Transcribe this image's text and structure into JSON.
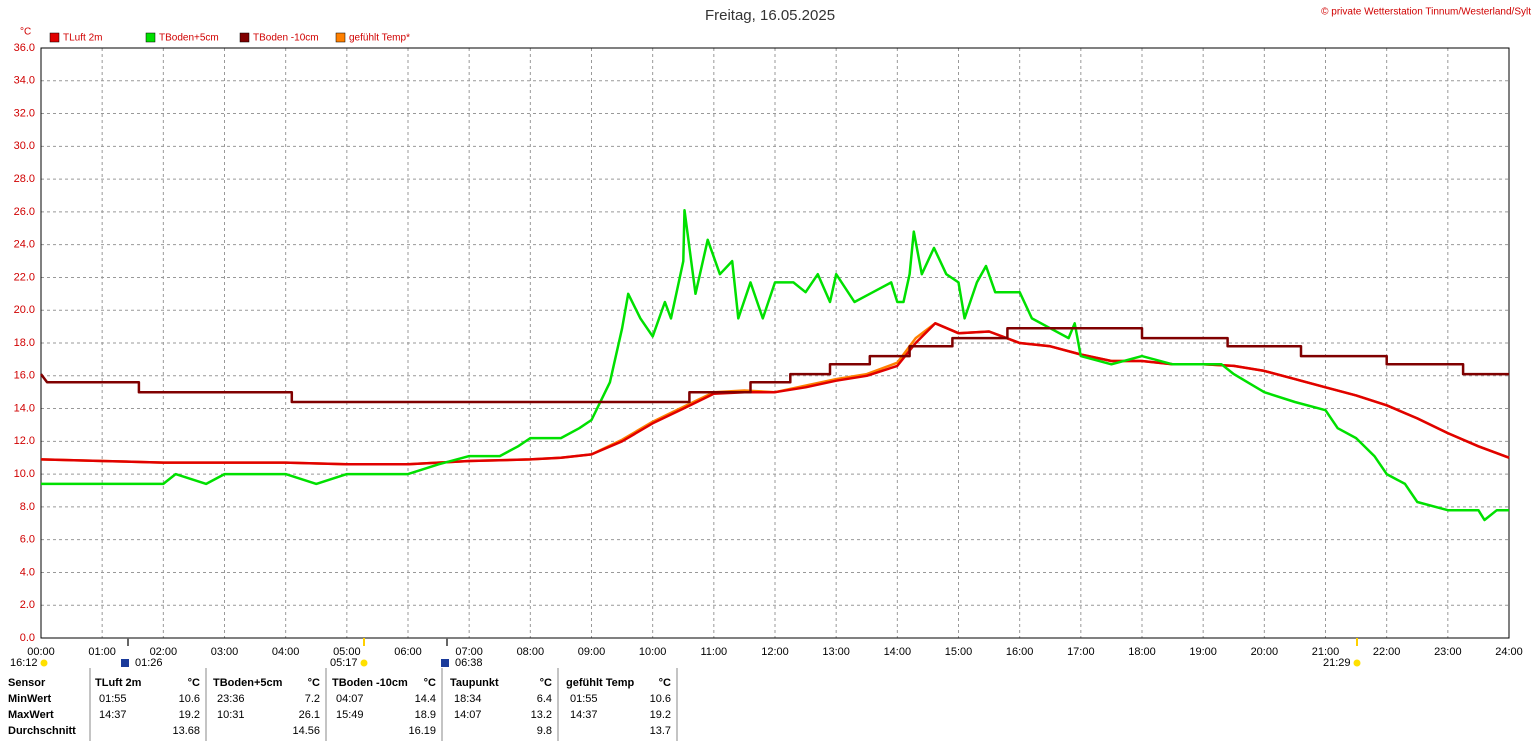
{
  "chart_data": {
    "type": "line",
    "title": "Freitag, 16.05.2025",
    "copyright": "© private Wetterstation Tinnum/Westerland/Sylt",
    "ylabel": "°C",
    "xlim": [
      0,
      24
    ],
    "ylim": [
      0,
      36
    ],
    "grid": true,
    "legend": "top-left",
    "xticks": [
      {
        "value": 0,
        "label": "00:00"
      },
      {
        "value": 1,
        "label": "01:00"
      },
      {
        "value": 2,
        "label": "02:00"
      },
      {
        "value": 3,
        "label": "03:00"
      },
      {
        "value": 4,
        "label": "04:00"
      },
      {
        "value": 5,
        "label": "05:00"
      },
      {
        "value": 6,
        "label": "06:00"
      },
      {
        "value": 7,
        "label": "07:00"
      },
      {
        "value": 8,
        "label": "08:00"
      },
      {
        "value": 9,
        "label": "09:00"
      },
      {
        "value": 10,
        "label": "10:00"
      },
      {
        "value": 11,
        "label": "11:00"
      },
      {
        "value": 12,
        "label": "12:00"
      },
      {
        "value": 13,
        "label": "13:00"
      },
      {
        "value": 14,
        "label": "14:00"
      },
      {
        "value": 15,
        "label": "15:00"
      },
      {
        "value": 16,
        "label": "16:00"
      },
      {
        "value": 17,
        "label": "17:00"
      },
      {
        "value": 18,
        "label": "18:00"
      },
      {
        "value": 19,
        "label": "19:00"
      },
      {
        "value": 20,
        "label": "20:00"
      },
      {
        "value": 21,
        "label": "21:00"
      },
      {
        "value": 22,
        "label": "22:00"
      },
      {
        "value": 23,
        "label": "23:00"
      },
      {
        "value": 24,
        "label": "24:00"
      }
    ],
    "yticks": [
      {
        "value": 0,
        "label": "0.0"
      },
      {
        "value": 2,
        "label": "2.0"
      },
      {
        "value": 4,
        "label": "4.0"
      },
      {
        "value": 6,
        "label": "6.0"
      },
      {
        "value": 8,
        "label": "8.0"
      },
      {
        "value": 10,
        "label": "10.0"
      },
      {
        "value": 12,
        "label": "12.0"
      },
      {
        "value": 14,
        "label": "14.0"
      },
      {
        "value": 16,
        "label": "16.0"
      },
      {
        "value": 18,
        "label": "18.0"
      },
      {
        "value": 20,
        "label": "20.0"
      },
      {
        "value": 22,
        "label": "22.0"
      },
      {
        "value": 24,
        "label": "24.0"
      },
      {
        "value": 26,
        "label": "26.0"
      },
      {
        "value": 28,
        "label": "28.0"
      },
      {
        "value": 30,
        "label": "30.0"
      },
      {
        "value": 32,
        "label": "32.0"
      },
      {
        "value": 34,
        "label": "34.0"
      },
      {
        "value": 36,
        "label": "36.0"
      }
    ],
    "series": [
      {
        "name": "gefühlt Temp*",
        "color": "#ff8000",
        "x": [
          0,
          1,
          2,
          3,
          4,
          5,
          6,
          7,
          8,
          8.5,
          9,
          9.5,
          10,
          10.5,
          11,
          11.5,
          12,
          12.5,
          13,
          13.5,
          14,
          14.3,
          14.62,
          15,
          15.5,
          16,
          16.5,
          17,
          17.5,
          18,
          18.5,
          19,
          19.5,
          20,
          20.5,
          21,
          21.5,
          22,
          22.5,
          23,
          23.5,
          24
        ],
        "values": [
          10.9,
          10.8,
          10.7,
          10.7,
          10.7,
          10.6,
          10.6,
          10.8,
          10.9,
          11.0,
          11.2,
          12.1,
          13.2,
          14.1,
          15.0,
          15.1,
          15.0,
          15.4,
          15.8,
          16.1,
          16.8,
          18.3,
          19.2,
          18.6,
          18.7,
          18.0,
          17.8,
          17.3,
          16.9,
          16.9,
          16.7,
          16.7,
          16.6,
          16.3,
          15.8,
          15.3,
          14.8,
          14.2,
          13.4,
          12.5,
          11.7,
          11.0
        ]
      },
      {
        "name": "TLuft 2m",
        "color": "#e00000",
        "x": [
          0,
          1,
          2,
          3,
          4,
          5,
          6,
          7,
          8,
          8.5,
          9,
          9.5,
          10,
          10.5,
          11,
          11.5,
          12,
          12.5,
          13,
          13.5,
          14,
          14.3,
          14.62,
          15,
          15.5,
          16,
          16.5,
          17,
          17.5,
          18,
          18.5,
          19,
          19.5,
          20,
          20.5,
          21,
          21.5,
          22,
          22.5,
          23,
          23.5,
          24
        ],
        "values": [
          10.9,
          10.8,
          10.7,
          10.7,
          10.7,
          10.6,
          10.6,
          10.8,
          10.9,
          11.0,
          11.2,
          12.0,
          13.1,
          14.0,
          14.9,
          15.0,
          15.0,
          15.3,
          15.7,
          16.0,
          16.6,
          18.0,
          19.2,
          18.6,
          18.7,
          18.0,
          17.8,
          17.3,
          16.9,
          16.9,
          16.7,
          16.7,
          16.6,
          16.3,
          15.8,
          15.3,
          14.8,
          14.2,
          13.4,
          12.5,
          11.7,
          11.0
        ]
      },
      {
        "name": "TBoden+5cm",
        "color": "#00e000",
        "x": [
          0,
          1.3,
          2,
          2.2,
          2.7,
          3,
          4,
          4.5,
          5,
          6,
          6.5,
          7,
          7.5,
          7.8,
          8,
          8.5,
          8.8,
          9,
          9.3,
          9.5,
          9.6,
          9.8,
          10,
          10.2,
          10.3,
          10.5,
          10.52,
          10.7,
          10.9,
          11.1,
          11.3,
          11.4,
          11.6,
          11.8,
          12,
          12.3,
          12.5,
          12.7,
          12.9,
          13,
          13.3,
          13.6,
          13.9,
          14,
          14.1,
          14.2,
          14.27,
          14.4,
          14.6,
          14.8,
          15,
          15.1,
          15.3,
          15.45,
          15.6,
          16,
          16.2,
          16.5,
          16.8,
          16.9,
          17,
          17.5,
          18,
          18.5,
          19,
          19.3,
          19.5,
          20,
          20.5,
          21,
          21.2,
          21.5,
          21.8,
          22,
          22.3,
          22.5,
          23,
          23.5,
          23.6,
          23.8,
          24
        ],
        "values": [
          9.4,
          9.4,
          9.4,
          10.0,
          9.4,
          10.0,
          10.0,
          9.4,
          10.0,
          10.0,
          10.6,
          11.1,
          11.1,
          11.7,
          12.2,
          12.2,
          12.8,
          13.3,
          15.6,
          18.9,
          21.0,
          19.5,
          18.4,
          20.5,
          19.5,
          23.0,
          26.1,
          21.0,
          24.3,
          22.2,
          23.0,
          19.5,
          21.7,
          19.5,
          21.7,
          21.7,
          21.1,
          22.2,
          20.5,
          22.2,
          20.5,
          21.1,
          21.7,
          20.5,
          20.5,
          22.2,
          24.8,
          22.2,
          23.8,
          22.2,
          21.7,
          19.5,
          21.7,
          22.7,
          21.1,
          21.1,
          19.5,
          18.9,
          18.3,
          19.2,
          17.2,
          16.7,
          17.2,
          16.7,
          16.7,
          16.7,
          16.1,
          15.0,
          14.4,
          13.9,
          12.8,
          12.2,
          11.1,
          10.0,
          9.4,
          8.3,
          7.8,
          7.8,
          7.2,
          7.8,
          7.8
        ]
      },
      {
        "name": "TBoden -10cm",
        "color": "#800000",
        "x": [
          0,
          0.1,
          1.6,
          1.6,
          4.1,
          4.1,
          10.6,
          10.6,
          11.6,
          11.6,
          12.25,
          12.25,
          12.9,
          12.9,
          13.55,
          13.55,
          14.2,
          14.2,
          14.9,
          14.9,
          15.8,
          15.8,
          18.0,
          18.0,
          19.4,
          19.4,
          20.6,
          20.6,
          22.0,
          22.0,
          23.25,
          23.25,
          24
        ],
        "values": [
          16.1,
          15.6,
          15.6,
          15.0,
          15.0,
          14.4,
          14.4,
          15.0,
          15.0,
          15.6,
          15.6,
          16.1,
          16.1,
          16.7,
          16.7,
          17.2,
          17.2,
          17.8,
          17.8,
          18.3,
          18.3,
          18.9,
          18.9,
          18.3,
          18.3,
          17.8,
          17.8,
          17.2,
          17.2,
          16.7,
          16.7,
          16.1,
          16.1
        ]
      }
    ],
    "annotations": [
      {
        "label": "16:12"
      },
      {
        "label": "01:26"
      },
      {
        "label": "05:17"
      },
      {
        "label": "06:38"
      },
      {
        "label": "21:29"
      }
    ]
  },
  "stats_table": {
    "header": [
      {
        "name": "Sensor"
      },
      {
        "name": "TLuft 2m",
        "unit": "°C"
      },
      {
        "name": "TBoden+5cm",
        "unit": "°C"
      },
      {
        "name": "TBoden -10cm",
        "unit": "°C"
      },
      {
        "name": "Taupunkt",
        "unit": "°C"
      },
      {
        "name": "gefühlt Temp",
        "unit": "°C"
      }
    ],
    "rows": [
      {
        "label": "MinWert",
        "cells": [
          {
            "time": "01:55",
            "value": "10.6"
          },
          {
            "time": "23:36",
            "value": "7.2"
          },
          {
            "time": "04:07",
            "value": "14.4"
          },
          {
            "time": "18:34",
            "value": "6.4"
          },
          {
            "time": "01:55",
            "value": "10.6"
          }
        ]
      },
      {
        "label": "MaxWert",
        "cells": [
          {
            "time": "14:37",
            "value": "19.2"
          },
          {
            "time": "10:31",
            "value": "26.1"
          },
          {
            "time": "15:49",
            "value": "18.9"
          },
          {
            "time": "14:07",
            "value": "13.2"
          },
          {
            "time": "14:37",
            "value": "19.2"
          }
        ]
      },
      {
        "label": "Durchschnitt",
        "cells": [
          {
            "value": "13.68"
          },
          {
            "value": "14.56"
          },
          {
            "value": "16.19"
          },
          {
            "value": "9.8"
          },
          {
            "value": "13.7"
          }
        ]
      }
    ]
  }
}
